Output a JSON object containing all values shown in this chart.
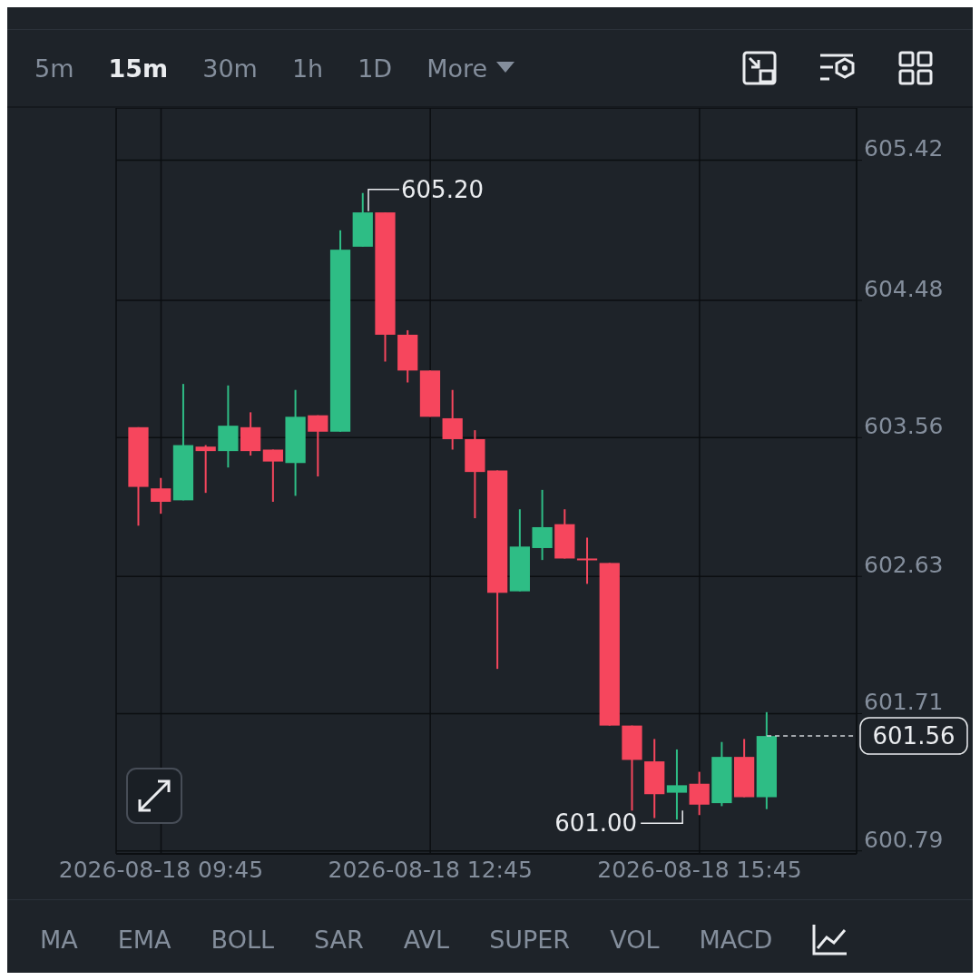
{
  "chart_data": {
    "type": "candlestick",
    "x": [
      "2026-08-18T09:30",
      "2026-08-18T09:45",
      "2026-08-18T10:00",
      "2026-08-18T10:15",
      "2026-08-18T10:30",
      "2026-08-18T10:45",
      "2026-08-18T11:00",
      "2026-08-18T11:15",
      "2026-08-18T11:30",
      "2026-08-18T11:45",
      "2026-08-18T12:00",
      "2026-08-18T12:15",
      "2026-08-18T12:30",
      "2026-08-18T12:45",
      "2026-08-18T13:00",
      "2026-08-18T13:15",
      "2026-08-18T13:30",
      "2026-08-18T13:45",
      "2026-08-18T14:00",
      "2026-08-18T14:15",
      "2026-08-18T14:30",
      "2026-08-18T14:45",
      "2026-08-18T15:00",
      "2026-08-18T15:15",
      "2026-08-18T15:30",
      "2026-08-18T15:45",
      "2026-08-18T16:00",
      "2026-08-18T16:15",
      "2026-08-18T16:30"
    ],
    "ohlc": [
      [
        603.63,
        603.63,
        602.97,
        603.23
      ],
      [
        603.22,
        603.29,
        603.05,
        603.13
      ],
      [
        603.14,
        603.92,
        603.14,
        603.51
      ],
      [
        603.5,
        603.51,
        603.19,
        603.47
      ],
      [
        603.47,
        603.91,
        603.36,
        603.64
      ],
      [
        603.63,
        603.73,
        603.44,
        603.47
      ],
      [
        603.48,
        603.48,
        603.13,
        603.4
      ],
      [
        603.39,
        603.88,
        603.17,
        603.7
      ],
      [
        603.71,
        603.71,
        603.3,
        603.6
      ],
      [
        603.6,
        604.95,
        603.6,
        604.82
      ],
      [
        604.84,
        605.2,
        604.84,
        605.07
      ],
      [
        605.07,
        605.07,
        604.07,
        604.25
      ],
      [
        604.25,
        604.28,
        603.93,
        604.01
      ],
      [
        604.01,
        604.01,
        603.7,
        603.7
      ],
      [
        603.69,
        603.88,
        603.48,
        603.55
      ],
      [
        603.55,
        603.61,
        603.02,
        603.33
      ],
      [
        603.34,
        603.34,
        602.01,
        602.52
      ],
      [
        602.53,
        603.08,
        602.53,
        602.83
      ],
      [
        602.82,
        603.21,
        602.74,
        602.96
      ],
      [
        602.98,
        603.08,
        602.75,
        602.75
      ],
      [
        602.75,
        602.89,
        602.58,
        602.74
      ],
      [
        602.72,
        602.72,
        601.63,
        601.63
      ],
      [
        601.63,
        601.63,
        601.06,
        601.4
      ],
      [
        601.39,
        601.54,
        601.01,
        601.17
      ],
      [
        601.18,
        601.47,
        601.0,
        601.23
      ],
      [
        601.24,
        601.32,
        601.03,
        601.1
      ],
      [
        601.11,
        601.52,
        601.09,
        601.42
      ],
      [
        601.42,
        601.54,
        601.15,
        601.15
      ],
      [
        601.15,
        601.72,
        601.07,
        601.56
      ]
    ],
    "colors": [
      "#f6465d",
      "#f6465d",
      "#2ebd85",
      "#f6465d",
      "#2ebd85",
      "#f6465d",
      "#f6465d",
      "#2ebd85",
      "#f6465d",
      "#2ebd85",
      "#2ebd85",
      "#f6465d",
      "#f6465d",
      "#f6465d",
      "#f6465d",
      "#f6465d",
      "#f6465d",
      "#2ebd85",
      "#2ebd85",
      "#f6465d",
      "#f6465d",
      "#f6465d",
      "#f6465d",
      "#f6465d",
      "#2ebd85",
      "#f6465d",
      "#2ebd85",
      "#f6465d",
      "#2ebd85"
    ],
    "xlim": [
      "2026-08-18T09:15",
      "2026-08-18T17:30"
    ],
    "xticks": [
      {
        "value": "2026-08-18T09:45",
        "label": "2026-08-18 09:45"
      },
      {
        "value": "2026-08-18T12:45",
        "label": "2026-08-18 12:45"
      },
      {
        "value": "2026-08-18T15:45",
        "label": "2026-08-18 15:45"
      }
    ],
    "ylim": [
      600.77,
      605.77
    ],
    "yticks": [
      600.79,
      601.71,
      602.63,
      603.56,
      604.48,
      605.42
    ],
    "grid": true,
    "ref_lines": [
      {
        "axis": "y",
        "value": 601.56,
        "label": "601.56",
        "line_style": "dashed",
        "color": "#cfd3d8"
      }
    ],
    "annotations": [
      {
        "text": "605.20",
        "x": "2026-08-18T12:00",
        "y": 605.2
      },
      {
        "text": "601.00",
        "x": "2026-08-18T15:30",
        "y": 601.0
      },
      "5m",
      "15m",
      "30m",
      "1h",
      "1D",
      "More",
      "MA",
      "EMA",
      "BOLL",
      "SAR",
      "AVL",
      "SUPER",
      "VOL",
      "MACD"
    ]
  }
}
